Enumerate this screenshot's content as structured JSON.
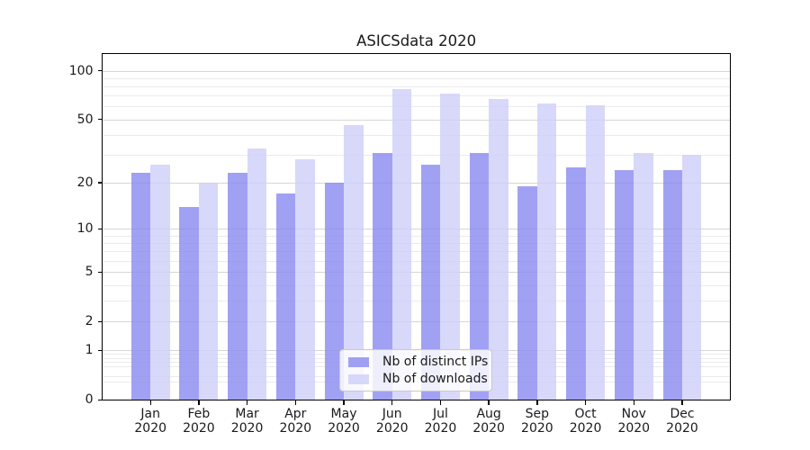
{
  "chart_data": {
    "type": "bar",
    "title": "ASICSdata 2020",
    "categories": [
      "Jan",
      "Feb",
      "Mar",
      "Apr",
      "May",
      "Jun",
      "Jul",
      "Aug",
      "Sep",
      "Oct",
      "Nov",
      "Dec"
    ],
    "category_year_line": "2020",
    "series": [
      {
        "name": "Nb of distinct IPs",
        "color": "rgba(137,137,240,0.8)",
        "values": [
          23,
          14,
          23,
          17,
          20,
          31,
          26,
          31,
          19,
          25,
          24,
          24
        ]
      },
      {
        "name": "Nb of downloads",
        "color": "rgba(206,206,249,0.8)",
        "values": [
          26,
          20,
          33,
          28,
          46,
          77,
          72,
          67,
          63,
          61,
          31,
          30
        ]
      }
    ],
    "xlabel": "",
    "ylabel": "",
    "yscale": "log1p",
    "ylim": [
      0,
      127.4
    ],
    "xlim": [
      -1,
      12
    ],
    "y_major_ticks": [
      0,
      1,
      2,
      5,
      10,
      20,
      50,
      100
    ],
    "y_minor_ticks": [
      0.3,
      0.4,
      0.6,
      0.7,
      0.8,
      0.9,
      3,
      4,
      6,
      7,
      8,
      9,
      30,
      40,
      60,
      70,
      80,
      90
    ],
    "grid": true,
    "legend_position": "lower center",
    "bar_width_data_units": 0.4
  },
  "colors": {
    "major_grid": "#d6d6d6",
    "minor_grid": "#ebebeb",
    "axis": "#000000",
    "text": "#1a1a1a",
    "legend_border": "#c9c9c9"
  }
}
